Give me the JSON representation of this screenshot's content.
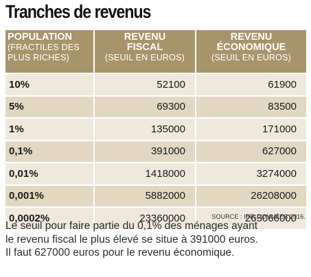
{
  "title": "Tranches de revenus",
  "table": {
    "headers": [
      {
        "main": "POPULATION",
        "sub1": "(FRACTILES DES",
        "sub2": "PLUS RICHES)"
      },
      {
        "main1": "REVENU",
        "main2": "FISCAL",
        "sub": "(SEUIL EN EUROS)"
      },
      {
        "main1": "REVENU",
        "main2": "ÉCONOMIQUE",
        "sub": "(SEUIL EN EUROS)"
      }
    ],
    "rows": [
      {
        "population": "10%",
        "fiscal": "52100",
        "economique": "61900"
      },
      {
        "population": "5%",
        "fiscal": "69300",
        "economique": "83500"
      },
      {
        "population": "1%",
        "fiscal": "135000",
        "economique": "171000"
      },
      {
        "population": "0,1%",
        "fiscal": "391000",
        "economique": "627000"
      },
      {
        "population": "0,01%",
        "fiscal": "1418000",
        "economique": "3274000"
      },
      {
        "population": "0,001%",
        "fiscal": "5882000",
        "economique": "26208000"
      },
      {
        "population": "0,0002%",
        "fiscal": "23360000",
        "economique": "265066000"
      }
    ],
    "header_color": "#a8946a",
    "row_color_light": "#efe9dc",
    "row_color_dark": "#e2d8c2"
  },
  "source": "SOURCE : IPP, DONNÉES 2016.",
  "caption": {
    "line1": "Le seuil pour faire partie du 0,1% des ménages ayant",
    "line2": "le revenu fiscal le plus élevé se situe à 391000 euros.",
    "line3": "Il faut 627000 euros pour le revenu économique."
  }
}
